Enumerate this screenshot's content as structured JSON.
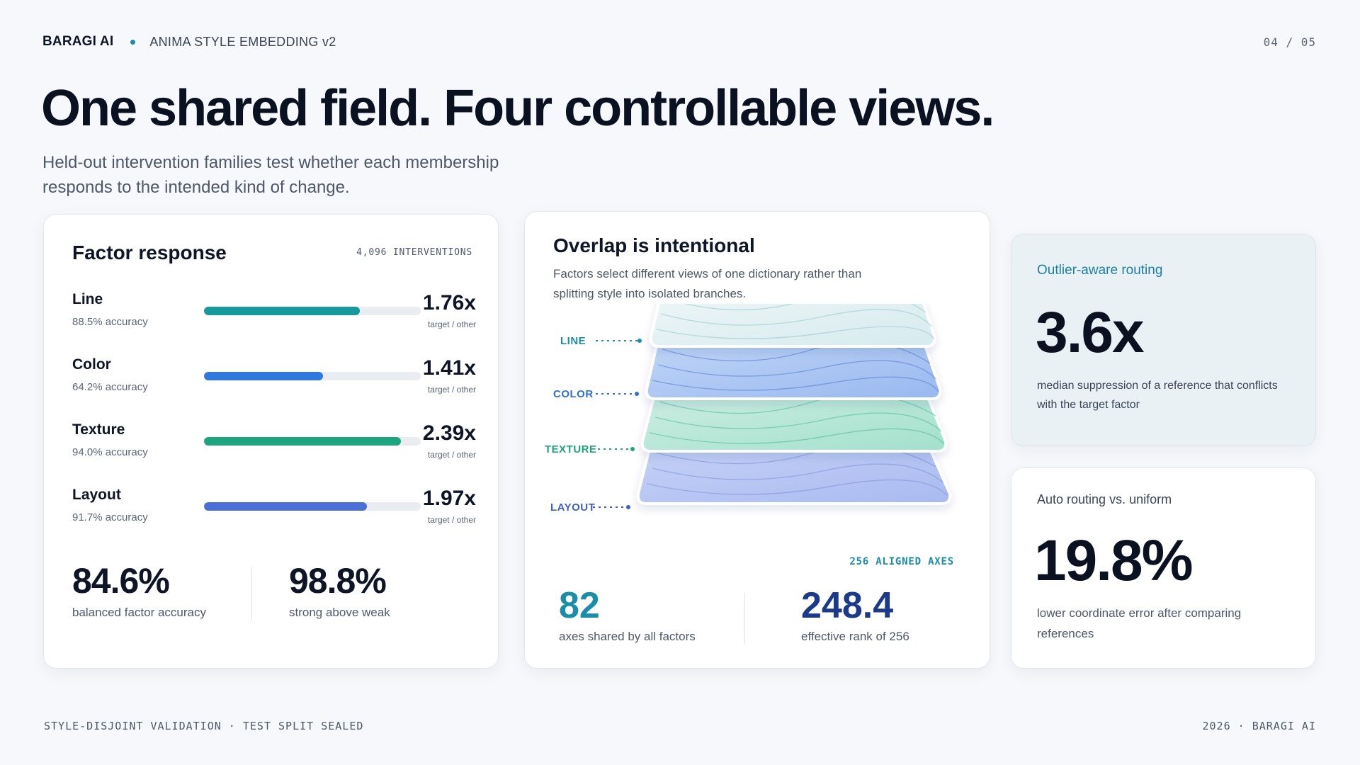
{
  "header": {
    "brand": "BARAGI AI",
    "subtitle": "ANIMA STYLE EMBEDDING v2",
    "page": "04 / 05"
  },
  "title": "One shared field. Four controllable views.",
  "subtitle": "Held-out intervention families test whether each membership responds to the intended kind of change.",
  "factor_card": {
    "title": "Factor response",
    "meta": "4,096 INTERVENTIONS",
    "factors": [
      {
        "name": "Line",
        "accuracy": "88.5% accuracy",
        "fill": 0.72,
        "color": "#169a9c",
        "ratio": "1.76x",
        "unit": "target / other"
      },
      {
        "name": "Color",
        "accuracy": "64.2% accuracy",
        "fill": 0.55,
        "color": "#2f78e0",
        "ratio": "1.41x",
        "unit": "target / other"
      },
      {
        "name": "Texture",
        "accuracy": "94.0% accuracy",
        "fill": 0.91,
        "color": "#1ea47e",
        "ratio": "2.39x",
        "unit": "target / other"
      },
      {
        "name": "Layout",
        "accuracy": "91.7% accuracy",
        "fill": 0.75,
        "color": "#4a6fd6",
        "ratio": "1.97x",
        "unit": "target / other"
      }
    ],
    "stat1": {
      "value": "84.6%",
      "caption": "balanced factor accuracy"
    },
    "stat2": {
      "value": "98.8%",
      "caption": "strong above weak"
    }
  },
  "overlap_card": {
    "title": "Overlap is intentional",
    "desc": "Factors select different views of one dictionary rather than splitting style into isolated branches.",
    "layers": [
      {
        "label": "LINE",
        "color": "#1a8ea8"
      },
      {
        "label": "COLOR",
        "color": "#2f6fd8"
      },
      {
        "label": "TEXTURE",
        "color": "#1ea47e"
      },
      {
        "label": "LAYOUT",
        "color": "#3f5fbf"
      }
    ],
    "axes_tag": "256 ALIGNED AXES",
    "stat1": {
      "value": "82",
      "caption": "axes shared by all factors"
    },
    "stat2": {
      "value": "248.4",
      "caption": "effective rank of 256"
    }
  },
  "routing_card": {
    "label": "Outlier-aware routing",
    "value": "3.6x",
    "caption": "median suppression of a reference that conflicts with the target factor"
  },
  "auto_card": {
    "label": "Auto routing vs. uniform",
    "value": "19.8%",
    "caption": "lower coordinate error after comparing references"
  },
  "footer": {
    "left": "STYLE-DISJOINT VALIDATION · TEST SPLIT SEALED",
    "right": "2026 · BARAGI AI"
  }
}
